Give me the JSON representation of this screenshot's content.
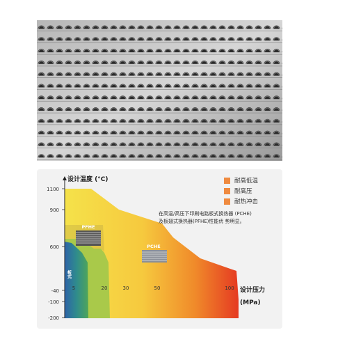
{
  "photo": {
    "subject": "perforated-metal-plate-photo"
  },
  "chart": {
    "ylabel": "设计温度 (°C)",
    "xlabel_line1": "设计压力",
    "xlabel_line2": "(MPa)",
    "y_ticks": [
      "1100",
      "900",
      "600",
      "-40",
      "-100",
      "-200"
    ],
    "x_ticks": [
      "5",
      "20",
      "30",
      "50",
      "100"
    ],
    "legend": [
      "耐高低温",
      "耐高压",
      "耐热冲击"
    ],
    "legend_color": "#ef8a3f",
    "note_line1": "在高温/高压下印刷电路板式换热器 (PCHE)",
    "note_line2": "及板翅式换热器(PFHE)性能优 势明显。",
    "label_pfhe": "PFHE",
    "label_pche": "PCHE",
    "label_small": "板式",
    "colors": {
      "red": "#e53a22",
      "orange": "#f08a2a",
      "yellow": "#f5e24a",
      "green": "#8dc23f",
      "teal": "#2f8c8c",
      "blue": "#2e63a8"
    }
  }
}
